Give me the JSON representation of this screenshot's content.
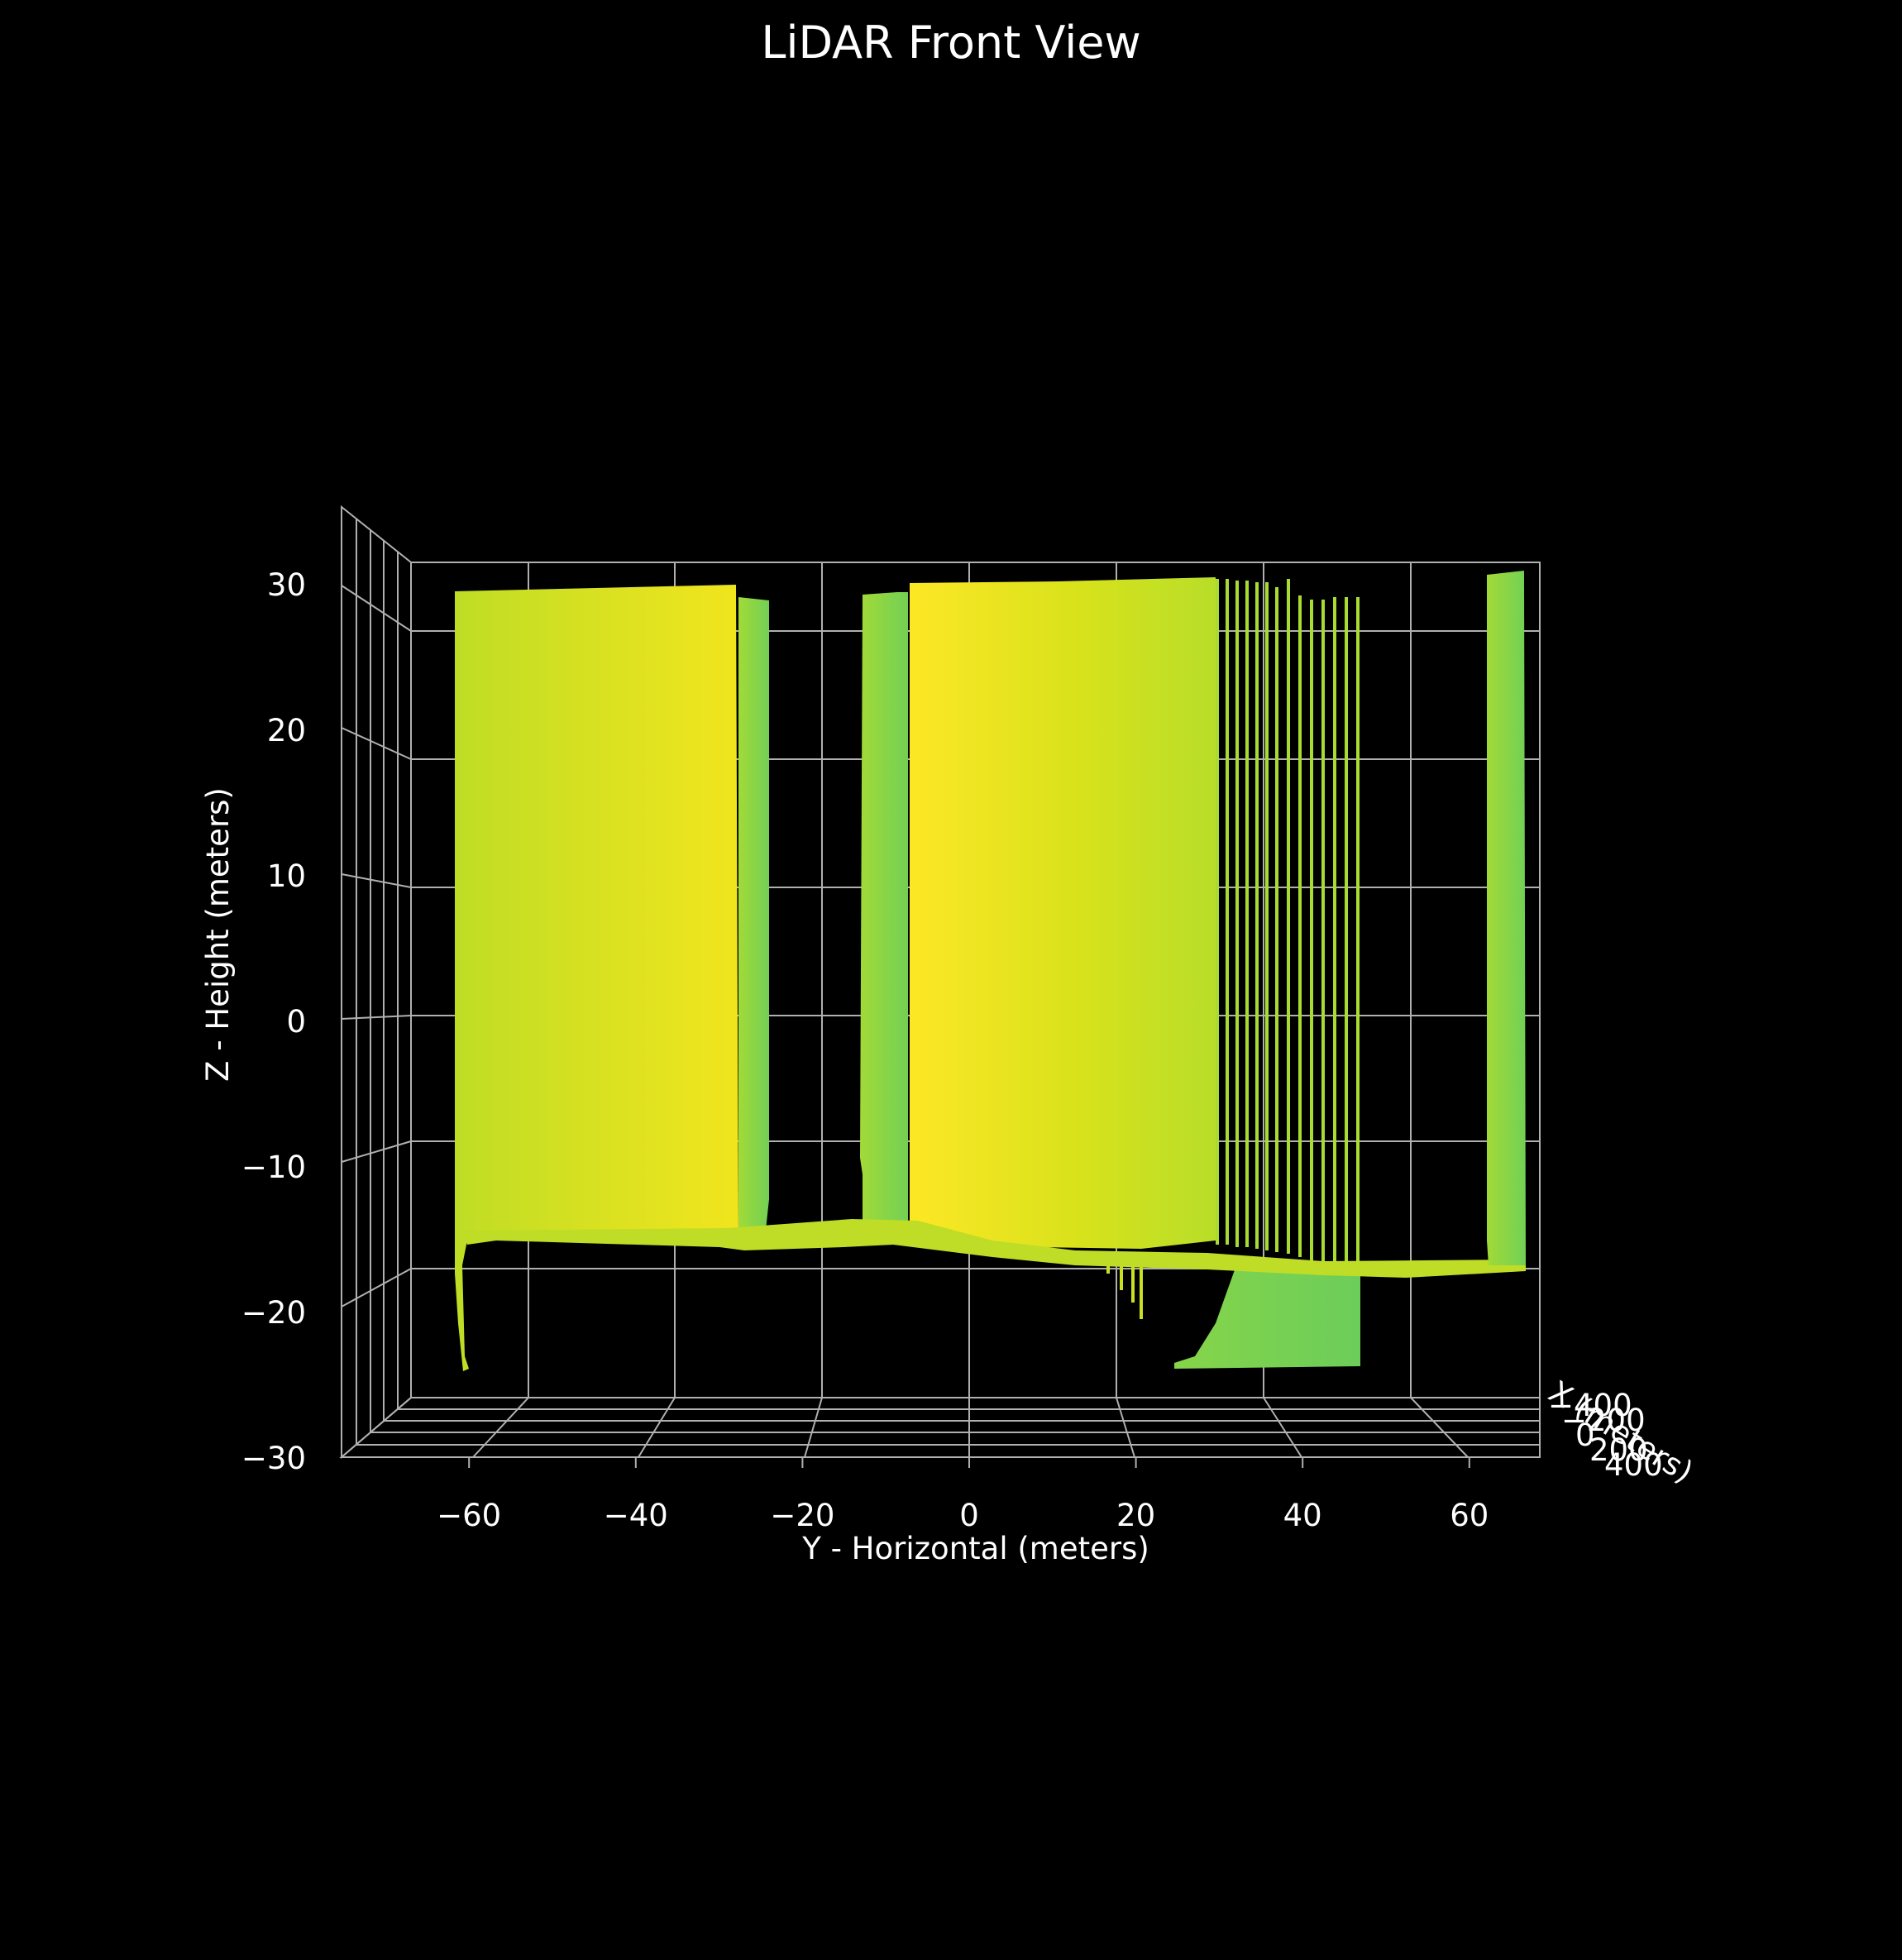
{
  "chart_data": {
    "type": "scatter",
    "projection": "3d",
    "view": "front",
    "title": "LiDAR Front View",
    "xlabel": "Y - Horizontal (meters)",
    "ylabel": "Z - Height (meters)",
    "zlabel": "X (meters)",
    "x_ticks": [
      "−60",
      "−40",
      "−20",
      "0",
      "20",
      "40",
      "60"
    ],
    "x_tick_values": [
      -60,
      -40,
      -20,
      0,
      20,
      40,
      60
    ],
    "y_ticks": [
      "−30",
      "−20",
      "−10",
      "0",
      "10",
      "20",
      "30"
    ],
    "y_tick_values": [
      -30,
      -20,
      -10,
      0,
      10,
      20,
      30
    ],
    "depth_ticks": [
      "−400",
      "−200",
      "0",
      "200",
      "400"
    ],
    "xlim": [
      -70,
      70
    ],
    "ylim": [
      -30,
      30
    ],
    "grid": true,
    "background": "#000000",
    "colormap": "viridis (yellow-green range)",
    "colors": {
      "bright": "#fde725",
      "mid": "#c8e020",
      "low": "#7ad151"
    },
    "clusters": [
      {
        "name": "wall-left",
        "y_range": [
          -62,
          -29
        ],
        "z_range": [
          -14.5,
          29.7
        ],
        "color": "#d4e21a"
      },
      {
        "name": "wall-left-back",
        "y_range": [
          -29,
          -24
        ],
        "z_range": [
          -13.5,
          29.3
        ],
        "color": "#8fd744"
      },
      {
        "name": "post-mid",
        "y_range": [
          -13,
          -6
        ],
        "z_range": [
          -14,
          29.5
        ],
        "color": "#9bd93c"
      },
      {
        "name": "wall-center",
        "y_range": [
          -6,
          28
        ],
        "z_range": [
          -15,
          30.2
        ],
        "color": "#e8e419"
      },
      {
        "name": "wall-right-strands",
        "y_range": [
          28,
          47
        ],
        "z_range": [
          -16,
          29.8
        ],
        "color": "#b5de2b"
      },
      {
        "name": "post-right",
        "y_range": [
          63,
          67
        ],
        "z_range": [
          -16,
          30.5
        ],
        "color": "#8fd744"
      },
      {
        "name": "ground-pile",
        "y_range": [
          30,
          47
        ],
        "z_range": [
          -24,
          -17
        ],
        "color": "#7ad151"
      }
    ]
  }
}
